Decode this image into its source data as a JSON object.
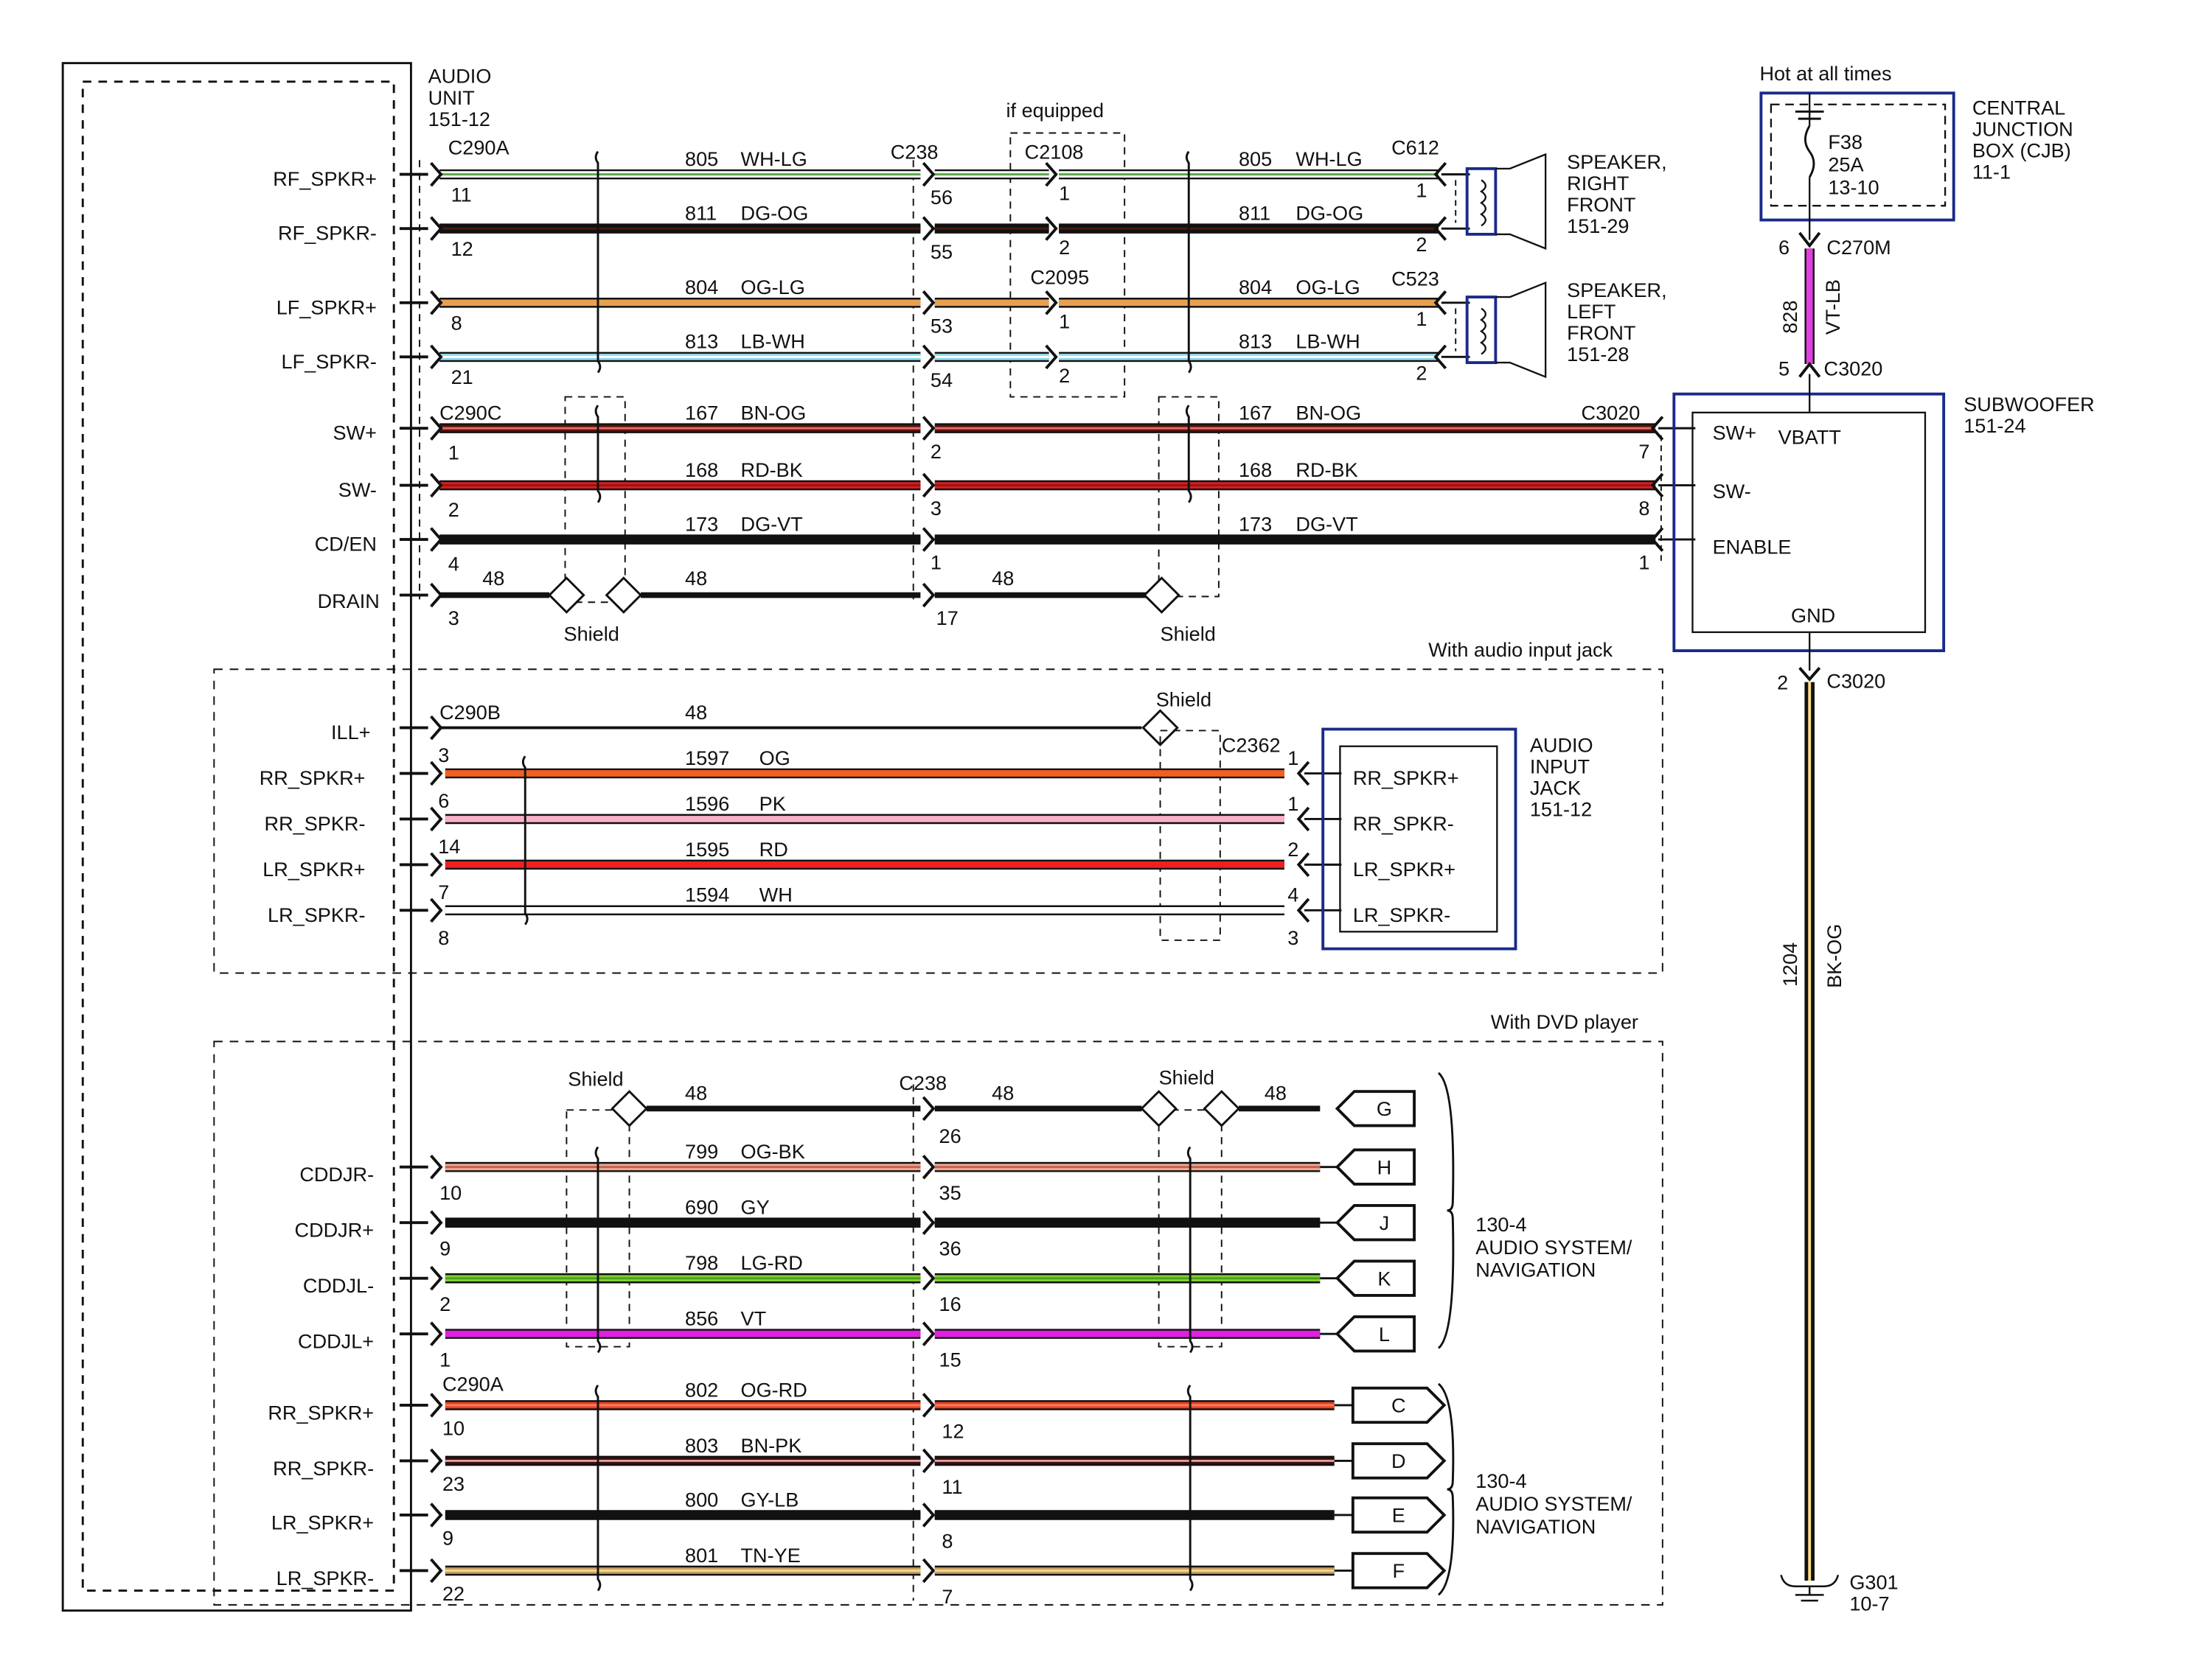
{
  "audio_unit": {
    "label": [
      "AUDIO",
      "UNIT",
      "151-12"
    ]
  },
  "connectors": {
    "c290a": "C290A",
    "c290c": "C290C",
    "c290b": "C290B",
    "c238": "C238",
    "c2108": "C2108",
    "c2095": "C2095",
    "c612": "C612",
    "c523": "C523",
    "c3020": "C3020",
    "c2362": "C2362",
    "c270m": "C270M"
  },
  "notes": {
    "if_equipped": "if equipped",
    "with_audio_jack": "With audio input jack",
    "with_dvd": "With DVD player",
    "shield": "Shield",
    "hot": "Hot at all times"
  },
  "speaker_wires": [
    {
      "signal": "RF_SPKR+",
      "pin": "11",
      "circuit": "805",
      "color": "WH-LG",
      "c238_pin": "56",
      "mid_pin": "1",
      "end_pin": "1",
      "base": "#ffffff",
      "stripe": "#5aa84a"
    },
    {
      "signal": "RF_SPKR-",
      "pin": "12",
      "circuit": "811",
      "color": "DG-OG",
      "c238_pin": "55",
      "mid_pin": "2",
      "end_pin": "2",
      "base": "#111111",
      "stripe": "#4a1a10"
    },
    {
      "signal": "LF_SPKR+",
      "pin": "8",
      "circuit": "804",
      "color": "OG-LG",
      "c238_pin": "53",
      "mid_pin": "1",
      "end_pin": "1",
      "base": "#e8a050",
      "stripe": "#e8a050"
    },
    {
      "signal": "LF_SPKR-",
      "pin": "21",
      "circuit": "813",
      "color": "LB-WH",
      "c238_pin": "54",
      "mid_pin": "2",
      "end_pin": "2",
      "base": "#8fd8e8",
      "stripe": "#ffffff"
    }
  ],
  "sub_wires": [
    {
      "signal": "SW+",
      "pin": "1",
      "circuit": "167",
      "color": "BN-OG",
      "c238_pin": "2",
      "end_pin": "7",
      "base": "#5a1010",
      "stripe": "#e07060"
    },
    {
      "signal": "SW-",
      "pin": "2",
      "circuit": "168",
      "color": "RD-BK",
      "c238_pin": "3",
      "end_pin": "8",
      "base": "#d42020",
      "stripe": "#a01010"
    },
    {
      "signal": "CD/EN",
      "pin": "4",
      "circuit": "173",
      "color": "DG-VT",
      "c238_pin": "1",
      "end_pin": "1",
      "base": "#111111",
      "stripe": "#111111"
    }
  ],
  "drain": {
    "signal": "DRAIN",
    "pin": "3",
    "circuit": "48",
    "c238_pin": "17"
  },
  "speakers": [
    {
      "label": [
        "SPEAKER,",
        "RIGHT",
        "FRONT",
        "151-29"
      ]
    },
    {
      "label": [
        "SPEAKER,",
        "LEFT",
        "FRONT",
        "151-28"
      ]
    }
  ],
  "subwoofer": {
    "label": [
      "SUBWOOFER",
      "151-24"
    ],
    "pins": [
      "SW+",
      "VBATT",
      "SW-",
      "ENABLE",
      "GND"
    ]
  },
  "cjb": {
    "label": [
      "CENTRAL",
      "JUNCTION",
      "BOX (CJB)",
      "11-1"
    ],
    "fuse": [
      "F38",
      "25A",
      "13-10"
    ],
    "pin_top": "6",
    "pin_bottom": "5",
    "circuit": "828",
    "color": "VT-LB",
    "wire_color": "#e040e0"
  },
  "ground": {
    "pin": "2",
    "circuit": "1204",
    "color": "BK-OG",
    "label": [
      "G301",
      "10-7"
    ]
  },
  "jack": {
    "ill": {
      "signal": "ILL+",
      "circuit": "48"
    },
    "label": [
      "AUDIO",
      "INPUT",
      "JACK",
      "151-12"
    ],
    "wires": [
      {
        "signal": "RR_SPKR+",
        "pin": "3",
        "circuit": "1597",
        "color": "OG",
        "end_pin": "1",
        "base": "#f06020"
      },
      {
        "signal": "RR_SPKR-",
        "pin": "6",
        "circuit": "1596",
        "color": "PK",
        "end_pin": "1",
        "base": "#f8b0c8"
      },
      {
        "signal": "LR_SPKR+",
        "pin": "14",
        "circuit": "1595",
        "color": "RD",
        "end_pin": "2",
        "base": "#f02020"
      },
      {
        "signal": "LR_SPKR-",
        "pin": "7",
        "circuit": "1594",
        "color": "WH",
        "end_pin": "4",
        "base": "#ffffff"
      }
    ],
    "extra_pins": [
      "8",
      "3"
    ],
    "box_pins": [
      "RR_SPKR+",
      "RR_SPKR-",
      "LR_SPKR+",
      "LR_SPKR-"
    ]
  },
  "dvd": {
    "drain": {
      "circuit": "48",
      "c238_pin": "26",
      "term": "G"
    },
    "wires": [
      {
        "signal": "CDDJR-",
        "pin": "10",
        "circuit": "799",
        "color": "OG-BK",
        "c238_pin": "35",
        "term": "H",
        "base": "#f0a890",
        "stripe": "#c06050"
      },
      {
        "signal": "CDDJR+",
        "pin": "9",
        "circuit": "690",
        "color": "GY",
        "c238_pin": "36",
        "term": "J",
        "base": "#111111",
        "stripe": "#111111"
      },
      {
        "signal": "CDDJL-",
        "pin": "2",
        "circuit": "798",
        "color": "LG-RD",
        "c238_pin": "16",
        "term": "K",
        "base": "#80d030",
        "stripe": "#50a020"
      },
      {
        "signal": "CDDJL+",
        "pin": "1",
        "circuit": "856",
        "color": "VT",
        "c238_pin": "15",
        "term": "L",
        "base": "#e020e0",
        "stripe": "#e020e0"
      }
    ],
    "rear": [
      {
        "signal": "RR_SPKR+",
        "pin": "10",
        "circuit": "802",
        "color": "OG-RD",
        "c238_pin": "12",
        "term": "C",
        "base": "#f04020",
        "stripe": "#f08060"
      },
      {
        "signal": "RR_SPKR-",
        "pin": "23",
        "circuit": "803",
        "color": "BN-PK",
        "c238_pin": "11",
        "term": "D",
        "base": "#3a1010",
        "stripe": "#e0a0a0"
      },
      {
        "signal": "LR_SPKR+",
        "pin": "9",
        "circuit": "800",
        "color": "GY-LB",
        "c238_pin": "8",
        "term": "E",
        "base": "#111111",
        "stripe": "#111111"
      },
      {
        "signal": "LR_SPKR-",
        "pin": "22",
        "circuit": "801",
        "color": "TN-YE",
        "c238_pin": "7",
        "term": "F",
        "base": "#c8a060",
        "stripe": "#f0d890"
      }
    ],
    "dest": [
      "130-4",
      "AUDIO SYSTEM/",
      "NAVIGATION"
    ]
  }
}
